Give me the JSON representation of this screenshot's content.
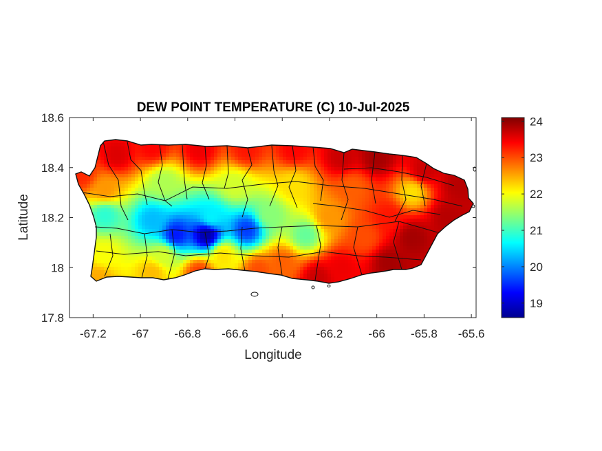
{
  "chart_data": {
    "type": "heatmap",
    "title": "DEW POINT TEMPERATURE (C) 10-Jul-2025",
    "xlabel": "Longitude",
    "ylabel": "Latitude",
    "xlim": [
      -67.3,
      -65.58
    ],
    "ylim": [
      17.8,
      18.6
    ],
    "x_ticks": [
      -67.2,
      -67,
      -66.8,
      -66.6,
      -66.4,
      -66.2,
      -66,
      -65.8,
      -65.6
    ],
    "x_tick_labels": [
      "-67.2",
      "-67",
      "-66.8",
      "-66.6",
      "-66.4",
      "-66.2",
      "-66",
      "-65.8",
      "-65.6"
    ],
    "y_ticks": [
      17.8,
      18,
      18.2,
      18.4,
      18.6
    ],
    "y_tick_labels": [
      "17.8",
      "18",
      "18.2",
      "18.4",
      "18.6"
    ],
    "colorbar": {
      "colormap": "jet",
      "clim": [
        18.6,
        24.1
      ],
      "ticks": [
        19,
        20,
        21,
        22,
        23,
        24
      ],
      "tick_labels": [
        "19",
        "20",
        "21",
        "22",
        "23",
        "24"
      ]
    },
    "grid": false,
    "field_samples": [
      {
        "lon": -67.25,
        "lat": 18.37,
        "value": 23.2
      },
      {
        "lon": -67.1,
        "lat": 18.45,
        "value": 23.6
      },
      {
        "lon": -66.95,
        "lat": 18.48,
        "value": 23.4
      },
      {
        "lon": -66.75,
        "lat": 18.47,
        "value": 23.5
      },
      {
        "lon": -66.55,
        "lat": 18.47,
        "value": 23.3
      },
      {
        "lon": -66.35,
        "lat": 18.47,
        "value": 23.4
      },
      {
        "lon": -66.15,
        "lat": 18.44,
        "value": 23.7
      },
      {
        "lon": -66.0,
        "lat": 18.44,
        "value": 23.9
      },
      {
        "lon": -65.8,
        "lat": 18.39,
        "value": 23.7
      },
      {
        "lon": -65.65,
        "lat": 18.33,
        "value": 23.8
      },
      {
        "lon": -67.15,
        "lat": 18.31,
        "value": 22.6
      },
      {
        "lon": -66.9,
        "lat": 18.34,
        "value": 21.6
      },
      {
        "lon": -66.6,
        "lat": 18.33,
        "value": 21.8
      },
      {
        "lon": -66.35,
        "lat": 18.33,
        "value": 22.2
      },
      {
        "lon": -66.1,
        "lat": 18.32,
        "value": 22.9
      },
      {
        "lon": -65.85,
        "lat": 18.3,
        "value": 22.2
      },
      {
        "lon": -67.15,
        "lat": 18.21,
        "value": 20.9
      },
      {
        "lon": -66.95,
        "lat": 18.19,
        "value": 20.3
      },
      {
        "lon": -66.7,
        "lat": 18.2,
        "value": 20.6
      },
      {
        "lon": -66.45,
        "lat": 18.21,
        "value": 21.4
      },
      {
        "lon": -66.2,
        "lat": 18.2,
        "value": 22.6
      },
      {
        "lon": -65.95,
        "lat": 18.2,
        "value": 23.3
      },
      {
        "lon": -65.7,
        "lat": 18.2,
        "value": 23.8
      },
      {
        "lon": -66.85,
        "lat": 18.13,
        "value": 19.4
      },
      {
        "lon": -66.72,
        "lat": 18.13,
        "value": 18.8
      },
      {
        "lon": -66.55,
        "lat": 18.15,
        "value": 19.6
      },
      {
        "lon": -66.3,
        "lat": 18.13,
        "value": 21.2
      },
      {
        "lon": -66.05,
        "lat": 18.12,
        "value": 23.0
      },
      {
        "lon": -65.85,
        "lat": 18.12,
        "value": 23.9
      },
      {
        "lon": -67.15,
        "lat": 18.05,
        "value": 22.0
      },
      {
        "lon": -66.9,
        "lat": 18.05,
        "value": 21.8
      },
      {
        "lon": -66.65,
        "lat": 18.05,
        "value": 22.2
      },
      {
        "lon": -66.4,
        "lat": 18.02,
        "value": 22.9
      },
      {
        "lon": -66.15,
        "lat": 18.0,
        "value": 23.5
      },
      {
        "lon": -65.95,
        "lat": 18.02,
        "value": 23.9
      },
      {
        "lon": -67.18,
        "lat": 17.96,
        "value": 22.5
      },
      {
        "lon": -66.95,
        "lat": 17.98,
        "value": 22.4
      },
      {
        "lon": -66.75,
        "lat": 17.98,
        "value": 23.1
      },
      {
        "lon": -66.5,
        "lat": 17.99,
        "value": 23.0
      },
      {
        "lon": -66.25,
        "lat": 17.96,
        "value": 23.7
      }
    ]
  }
}
